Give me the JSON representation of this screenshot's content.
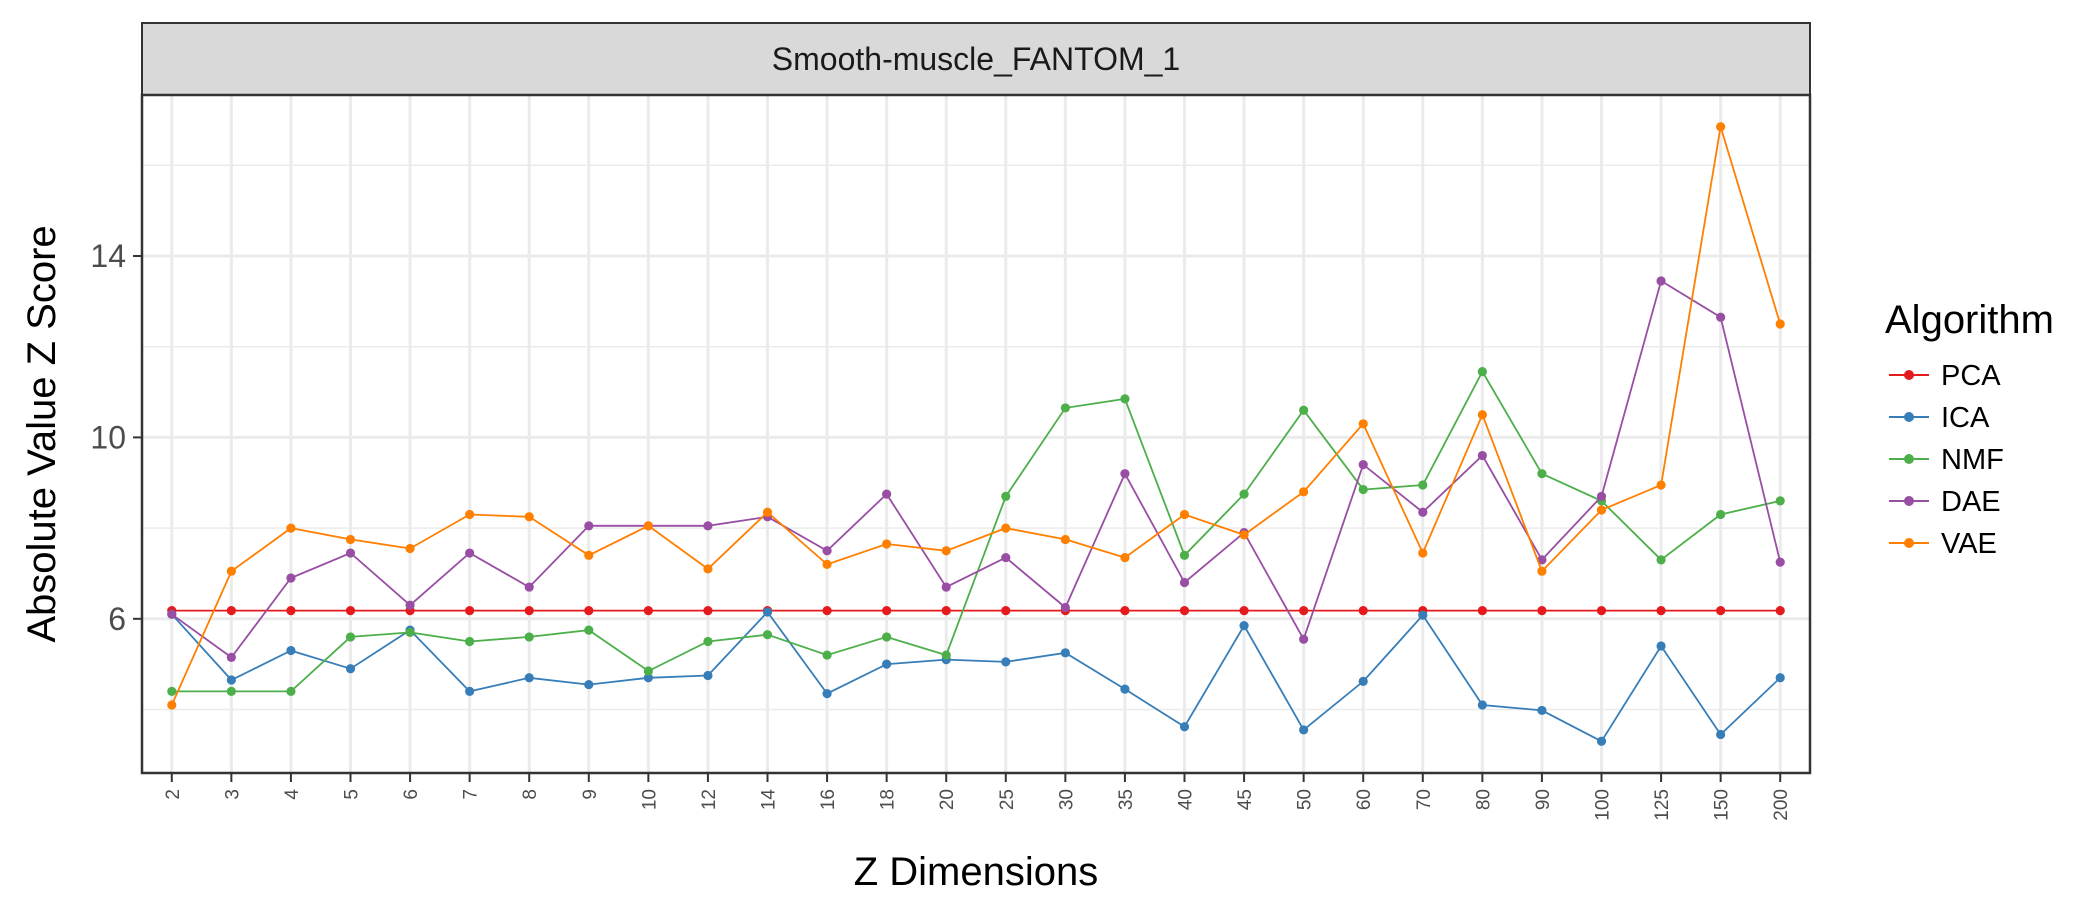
{
  "chart_data": {
    "type": "line",
    "panel_title": "Smooth-muscle_FANTOM_1",
    "xlabel": "Z Dimensions",
    "ylabel": "Absolute Value Z Score",
    "categories": [
      "2",
      "3",
      "4",
      "5",
      "6",
      "7",
      "8",
      "9",
      "10",
      "12",
      "14",
      "16",
      "18",
      "20",
      "25",
      "30",
      "35",
      "40",
      "45",
      "50",
      "60",
      "70",
      "80",
      "90",
      "100",
      "125",
      "150",
      "200"
    ],
    "y_ticks": [
      6,
      10,
      14
    ],
    "y_tick_labels": [
      "6",
      "10",
      "14"
    ],
    "ylim": [
      2.6,
      17.55
    ],
    "grid": true,
    "legend": {
      "title": "Algorithm",
      "placement": "right"
    },
    "series": [
      {
        "name": "PCA",
        "color": "#E41A1C",
        "values": [
          6.18,
          6.18,
          6.18,
          6.18,
          6.18,
          6.18,
          6.18,
          6.18,
          6.18,
          6.18,
          6.18,
          6.18,
          6.18,
          6.18,
          6.18,
          6.18,
          6.18,
          6.18,
          6.18,
          6.18,
          6.18,
          6.18,
          6.18,
          6.18,
          6.18,
          6.18,
          6.18,
          6.18
        ]
      },
      {
        "name": "ICA",
        "color": "#377EB8",
        "values": [
          6.1,
          4.65,
          5.3,
          4.9,
          5.75,
          4.4,
          4.7,
          4.55,
          4.7,
          4.75,
          6.15,
          4.35,
          5.0,
          5.1,
          5.05,
          5.25,
          4.45,
          3.62,
          5.85,
          3.55,
          4.62,
          6.08,
          4.1,
          3.98,
          3.3,
          5.4,
          3.45,
          4.7
        ]
      },
      {
        "name": "NMF",
        "color": "#4DAF4A",
        "values": [
          4.4,
          4.4,
          4.4,
          5.6,
          5.7,
          5.5,
          5.6,
          5.75,
          4.85,
          5.5,
          5.65,
          5.2,
          5.6,
          5.2,
          8.7,
          10.65,
          10.85,
          7.4,
          8.75,
          10.6,
          8.85,
          8.95,
          11.45,
          9.2,
          8.6,
          7.3,
          8.3,
          8.6
        ]
      },
      {
        "name": "DAE",
        "color": "#984EA3",
        "values": [
          6.1,
          5.15,
          6.9,
          7.45,
          6.3,
          7.45,
          6.7,
          8.05,
          8.05,
          8.05,
          8.25,
          7.5,
          8.75,
          6.7,
          7.35,
          6.25,
          9.2,
          6.8,
          7.9,
          5.55,
          9.4,
          8.35,
          9.6,
          7.3,
          8.7,
          13.45,
          12.65,
          7.25
        ]
      },
      {
        "name": "VAE",
        "color": "#FF7F00",
        "values": [
          4.1,
          7.05,
          8.0,
          7.75,
          7.55,
          8.3,
          8.25,
          7.4,
          8.05,
          7.1,
          8.35,
          7.2,
          7.65,
          7.5,
          8.0,
          7.75,
          7.35,
          8.3,
          7.85,
          8.8,
          10.3,
          7.45,
          10.5,
          7.05,
          8.4,
          8.95,
          16.85,
          12.5
        ]
      }
    ]
  }
}
